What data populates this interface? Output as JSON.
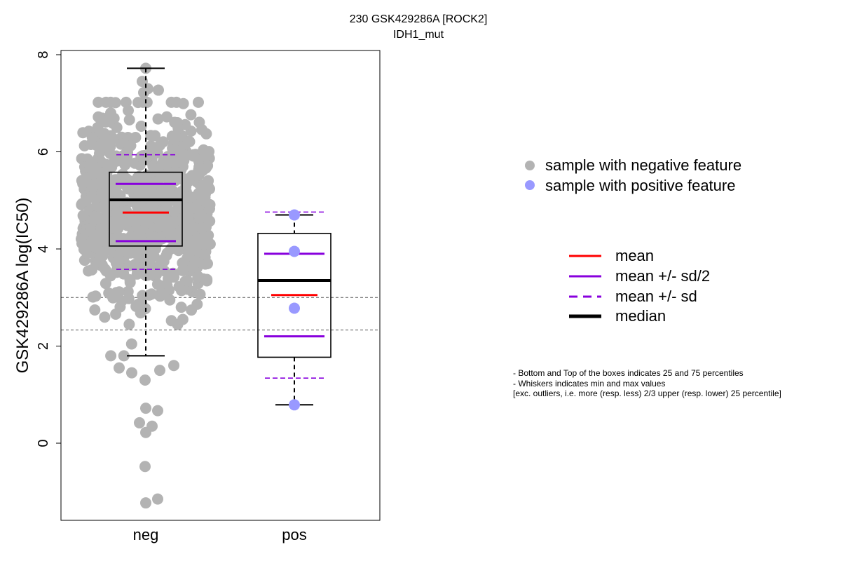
{
  "chart_data": {
    "type": "boxplot",
    "title": "230 GSK429286A [ROCK2]",
    "subtitle": "IDH1_mut",
    "ylabel": "GSK429286A log(IC50)",
    "xlabel": "",
    "ylim": [
      -1.6,
      8.1
    ],
    "y_ticks": [
      0,
      2,
      4,
      6,
      8
    ],
    "y_tick_labels": [
      "0",
      "2",
      "4",
      "6",
      "8"
    ],
    "categories": [
      "neg",
      "pos"
    ],
    "reference_lines": [
      3.0,
      2.33
    ],
    "colors": {
      "neg_points": "#b3b3b3",
      "pos_points": "#9999ff",
      "mean": "#ff0000",
      "sd": "#8800dd",
      "median": "#000000",
      "reference": "#555555"
    },
    "groups": [
      {
        "name": "neg",
        "box": {
          "q1": 4.06,
          "median": 5.01,
          "q3": 5.58
        },
        "whisker_low": 1.8,
        "whisker_high": 7.72,
        "mean": 4.75,
        "mean_minus_half_sd": 4.16,
        "mean_plus_half_sd": 5.34,
        "mean_minus_sd": 3.58,
        "mean_plus_sd": 5.94,
        "outliers": [
          1.3,
          1.45,
          1.5,
          1.55,
          1.6,
          0.72,
          0.67,
          0.42,
          0.35,
          0.22,
          -0.48,
          -1.15,
          -1.23
        ],
        "n_points_approx": 800
      },
      {
        "name": "pos",
        "box": {
          "q1": 1.77,
          "median": 3.35,
          "q3": 4.32
        },
        "whisker_low": 0.79,
        "whisker_high": 4.7,
        "mean": 3.05,
        "mean_minus_half_sd": 2.2,
        "mean_plus_half_sd": 3.9,
        "mean_minus_sd": 1.34,
        "mean_plus_sd": 4.76,
        "points": [
          4.7,
          3.95,
          2.78,
          0.79
        ]
      }
    ],
    "legend_points": [
      {
        "label": "sample with negative feature",
        "color": "#b3b3b3"
      },
      {
        "label": "sample with positive feature",
        "color": "#9999ff"
      }
    ],
    "legend_lines": [
      {
        "label": "mean",
        "color": "#ff0000",
        "style": "solid"
      },
      {
        "label": "mean +/- sd/2",
        "color": "#8800dd",
        "style": "solid"
      },
      {
        "label": "mean +/- sd",
        "color": "#8800dd",
        "style": "dashed"
      },
      {
        "label": "median",
        "color": "#000000",
        "style": "thick"
      }
    ]
  },
  "notes": [
    "- Bottom and Top of the boxes indicates 25 and 75 percentiles",
    "- Whiskers indicates min and max values",
    "[exc. outliers, i.e. more (resp. less) 2/3 upper (resp. lower) 25 percentile]"
  ]
}
